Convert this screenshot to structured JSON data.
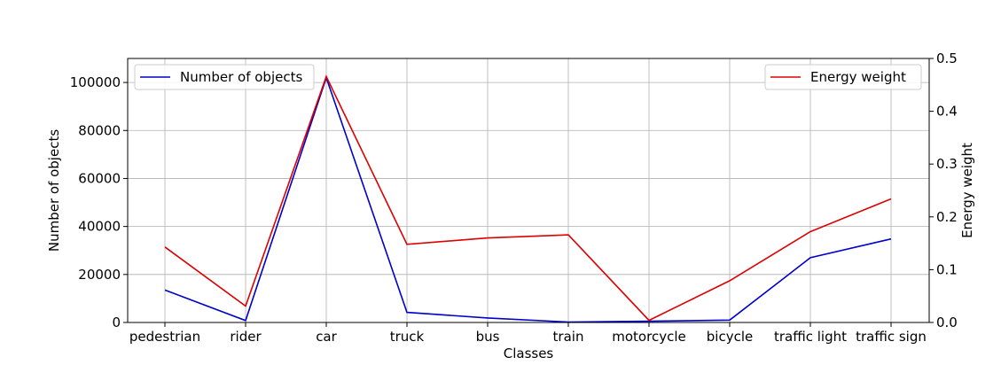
{
  "chart_data": {
    "type": "line",
    "title": "",
    "xlabel": "Classes",
    "ylabel": "Number of objects",
    "y2label": "Energy weight",
    "categories": [
      "pedestrian",
      "rider",
      "car",
      "truck",
      "bus",
      "train",
      "motorcycle",
      "bicycle",
      "traffic light",
      "traffic sign"
    ],
    "ylim": [
      0,
      110000
    ],
    "y2lim": [
      0,
      0.5
    ],
    "yticks": [
      "0",
      "20000",
      "40000",
      "60000",
      "80000",
      "100000"
    ],
    "yticks_values": [
      0,
      20000,
      40000,
      60000,
      80000,
      100000
    ],
    "y2ticks": [
      "0.0",
      "0.1",
      "0.2",
      "0.3",
      "0.4",
      "0.5"
    ],
    "y2ticks_values": [
      0,
      0.1,
      0.2,
      0.3,
      0.4,
      0.5
    ],
    "grid": true,
    "series": [
      {
        "name": "Number of objects",
        "axis": "left",
        "color": "#0000cc",
        "values": [
          13500,
          800,
          102000,
          4200,
          1900,
          200,
          500,
          1000,
          27000,
          34800
        ],
        "legend_position": "top-left"
      },
      {
        "name": "Energy weight",
        "axis": "right",
        "color": "#dd0000",
        "values": [
          0.143,
          0.031,
          0.466,
          0.148,
          0.16,
          0.166,
          0.004,
          0.079,
          0.172,
          0.234
        ],
        "legend_position": "top-right"
      }
    ]
  }
}
